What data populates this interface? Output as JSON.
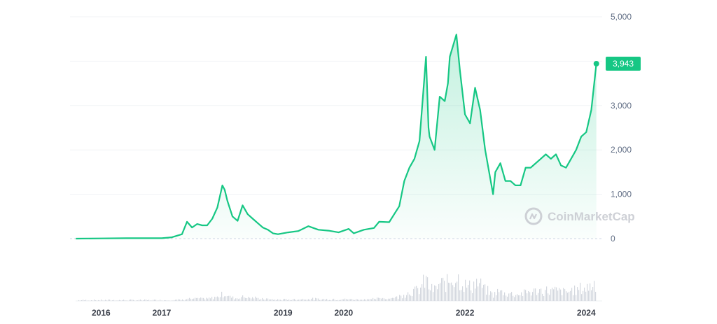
{
  "chart_data": {
    "type": "area",
    "title": "",
    "xlabel": "",
    "ylabel": "",
    "ylim": [
      0,
      5000
    ],
    "y_ticks": [
      "0",
      "1,000",
      "2,000",
      "3,000",
      "4,000",
      "5,000"
    ],
    "x_ticks": [
      "2016",
      "2017",
      "2019",
      "2020",
      "2022",
      "2024"
    ],
    "grid": true,
    "series": [
      {
        "x": [
          "2015-08",
          "2016-01",
          "2016-06",
          "2017-01",
          "2017-03",
          "2017-05",
          "2017-06",
          "2017-07",
          "2017-08",
          "2017-09",
          "2017-10",
          "2017-11",
          "2017-12",
          "2018-01",
          "2018-01-15",
          "2018-02",
          "2018-03",
          "2018-04",
          "2018-05",
          "2018-06",
          "2018-07",
          "2018-08",
          "2018-09",
          "2018-10",
          "2018-11",
          "2018-12",
          "2019-02",
          "2019-04",
          "2019-06",
          "2019-08",
          "2019-10",
          "2019-12",
          "2020-02",
          "2020-03",
          "2020-05",
          "2020-07",
          "2020-08",
          "2020-10",
          "2020-12",
          "2021-01",
          "2021-02",
          "2021-03",
          "2021-04",
          "2021-05-10",
          "2021-05-25",
          "2021-06",
          "2021-07",
          "2021-08",
          "2021-09",
          "2021-09-20",
          "2021-10",
          "2021-11-10",
          "2021-12",
          "2022-01",
          "2022-02",
          "2022-03",
          "2022-04",
          "2022-05",
          "2022-06-18",
          "2022-07",
          "2022-08",
          "2022-09",
          "2022-10",
          "2022-11",
          "2022-12",
          "2023-01",
          "2023-02",
          "2023-04",
          "2023-05",
          "2023-06",
          "2023-07",
          "2023-08",
          "2023-09",
          "2023-10",
          "2023-11",
          "2023-12",
          "2024-01",
          "2024-02",
          "2024-03"
        ],
        "values": [
          0,
          5,
          10,
          10,
          30,
          100,
          380,
          250,
          330,
          300,
          300,
          450,
          700,
          1200,
          1100,
          850,
          500,
          400,
          750,
          550,
          450,
          350,
          250,
          200,
          120,
          100,
          140,
          170,
          280,
          200,
          180,
          140,
          220,
          120,
          200,
          240,
          380,
          370,
          730,
          1300,
          1600,
          1800,
          2200,
          4100,
          2500,
          2300,
          2000,
          3200,
          3100,
          3500,
          4100,
          4600,
          3800,
          2800,
          2600,
          3400,
          2900,
          2000,
          1000,
          1500,
          1700,
          1300,
          1300,
          1200,
          1200,
          1600,
          1600,
          1800,
          1900,
          1800,
          1900,
          1650,
          1600,
          1800,
          2000,
          2300,
          2400,
          2900,
          3943
        ]
      }
    ],
    "current_value": "3,943",
    "colors": {
      "line": "#16c784",
      "area_top": "#16c784",
      "baseline": "#cfd6e4"
    }
  },
  "watermark": {
    "text": "CoinMarketCap",
    "icon": "coinmarketcap-logo-icon"
  }
}
